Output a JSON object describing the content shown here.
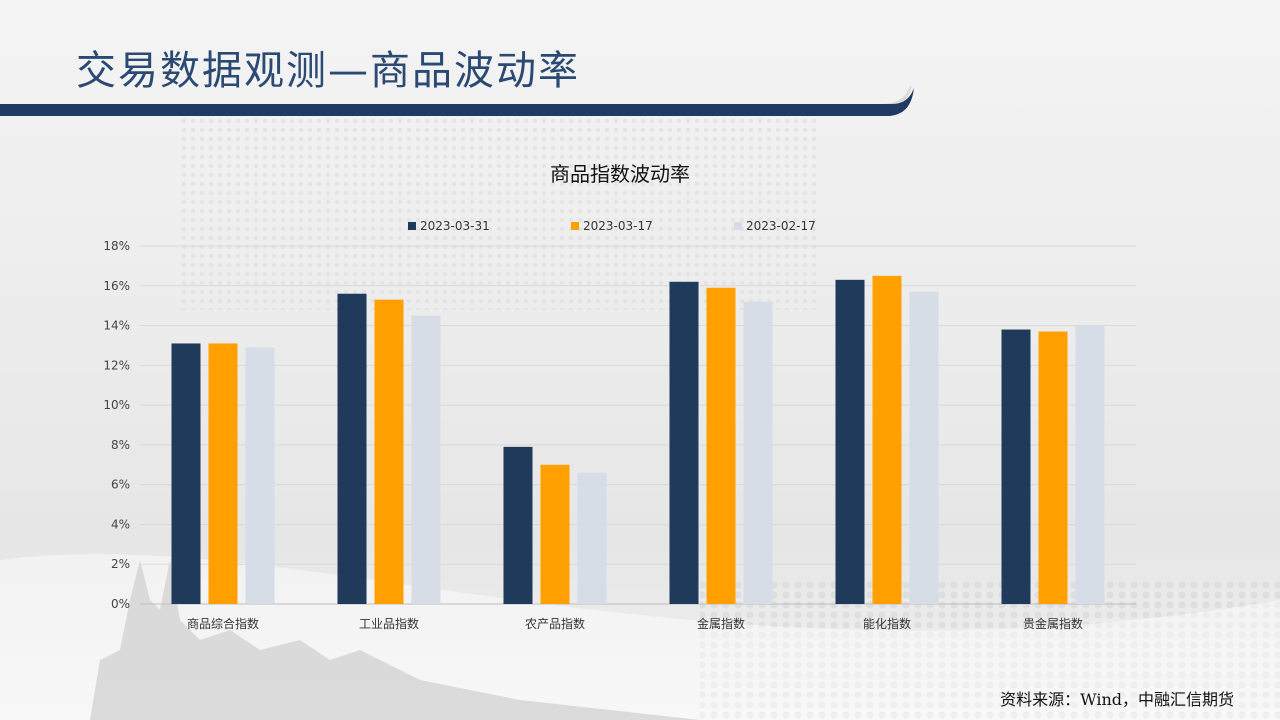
{
  "page": {
    "title": "交易数据观测—商品波动率",
    "source": "资料来源：Wind，中融汇信期货"
  },
  "colors": {
    "title_text": "#2b4a73",
    "band_dark": "#1f3b63",
    "series": [
      "#1f3a5a",
      "#ffa000",
      "#d6dde6"
    ]
  },
  "chart_data": {
    "type": "bar",
    "title": "商品指数波动率",
    "categories": [
      "商品综合指数",
      "工业品指数",
      "农产品指数",
      "金属指数",
      "能化指数",
      "贵金属指数"
    ],
    "series": [
      {
        "name": "2023-03-31",
        "values": [
          13.1,
          15.6,
          7.9,
          16.2,
          16.3,
          13.8
        ]
      },
      {
        "name": "2023-03-17",
        "values": [
          13.1,
          15.3,
          7.0,
          15.9,
          16.5,
          13.7
        ]
      },
      {
        "name": "2023-02-17",
        "values": [
          12.9,
          14.5,
          6.6,
          15.2,
          15.7,
          14.0
        ]
      }
    ],
    "ylim": [
      0,
      18
    ],
    "yticks": [
      "0%",
      "2%",
      "4%",
      "6%",
      "8%",
      "10%",
      "12%",
      "14%",
      "16%",
      "18%"
    ],
    "grid": true,
    "legend_position": "top"
  }
}
